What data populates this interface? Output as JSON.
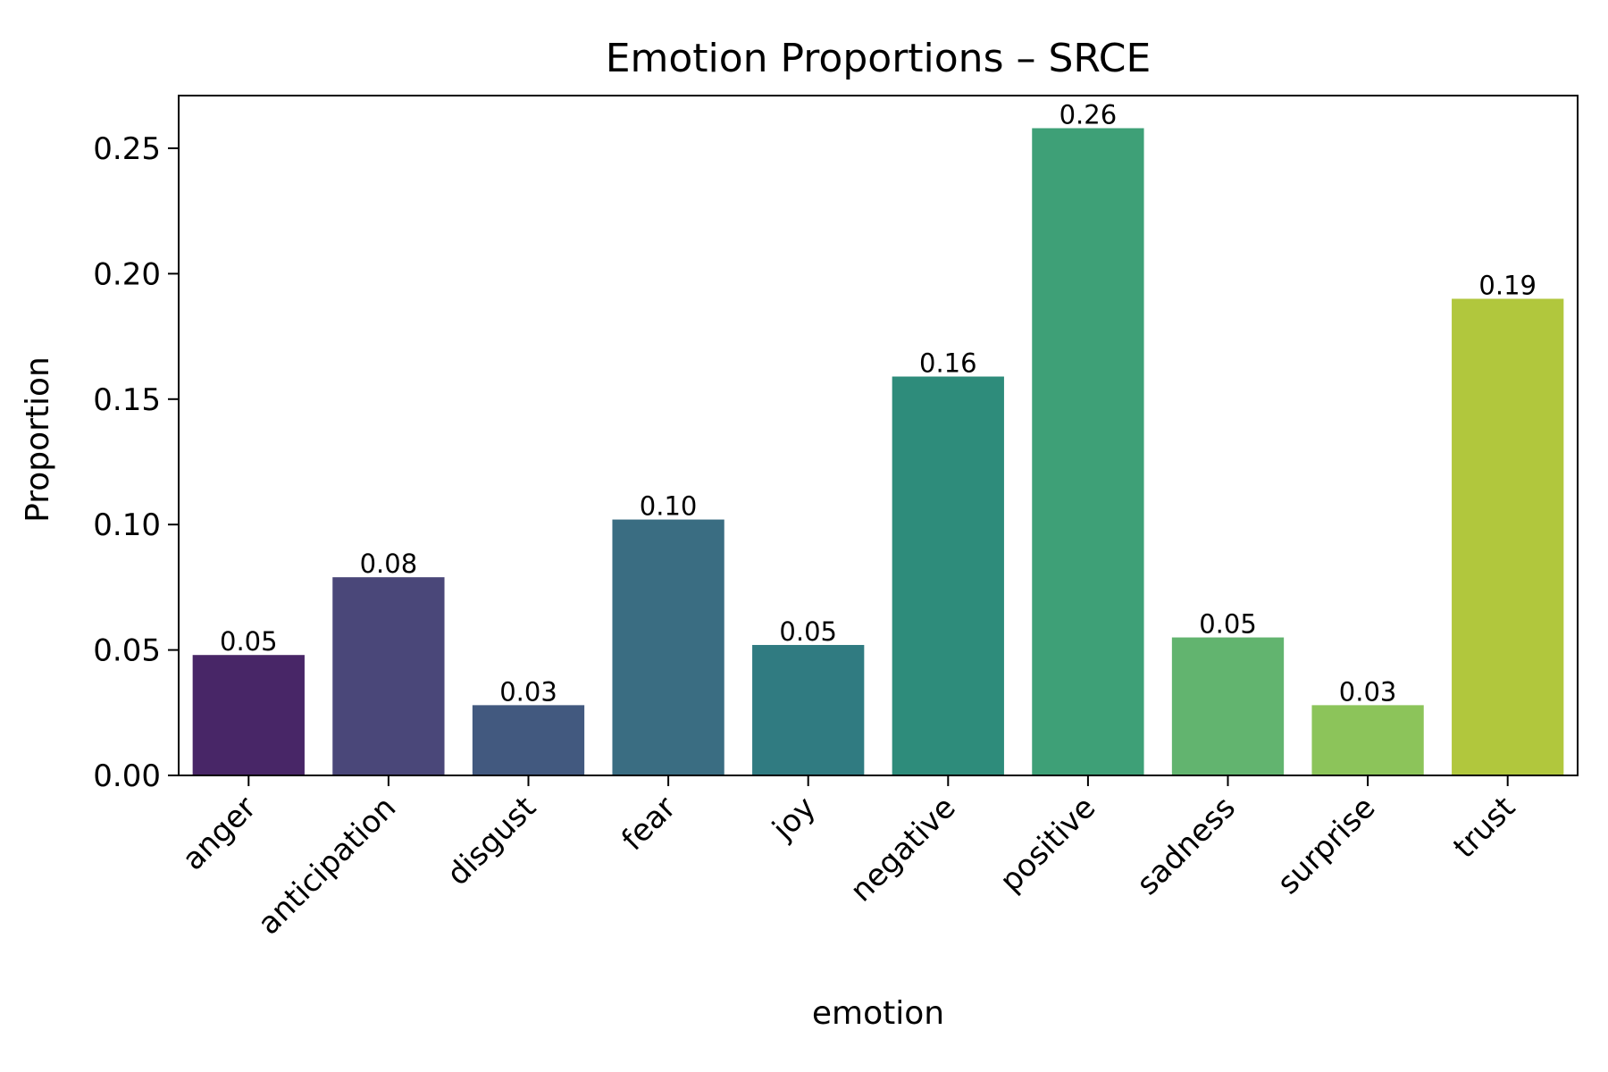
{
  "chart_data": {
    "type": "bar",
    "title": "Emotion Proportions – SRCE",
    "xlabel": "emotion",
    "ylabel": "Proportion",
    "categories": [
      "anger",
      "anticipation",
      "disgust",
      "fear",
      "joy",
      "negative",
      "positive",
      "sadness",
      "surprise",
      "trust"
    ],
    "values": [
      0.048,
      0.079,
      0.028,
      0.102,
      0.052,
      0.159,
      0.258,
      0.055,
      0.028,
      0.19
    ],
    "data_labels": [
      "0.05",
      "0.08",
      "0.03",
      "0.10",
      "0.05",
      "0.16",
      "0.26",
      "0.05",
      "0.03",
      "0.19"
    ],
    "colors": [
      "#482667",
      "#4a4779",
      "#42597f",
      "#3a6d82",
      "#307b81",
      "#2e8c7b",
      "#3ea077",
      "#62b46f",
      "#8cc45a",
      "#b1c73d"
    ],
    "yticks": [
      0.0,
      0.05,
      0.1,
      0.15,
      0.2,
      0.25
    ],
    "ytick_labels": [
      "0.00",
      "0.05",
      "0.10",
      "0.15",
      "0.20",
      "0.25"
    ],
    "ylim": [
      0,
      0.271
    ],
    "grid": false,
    "legend": false
  }
}
